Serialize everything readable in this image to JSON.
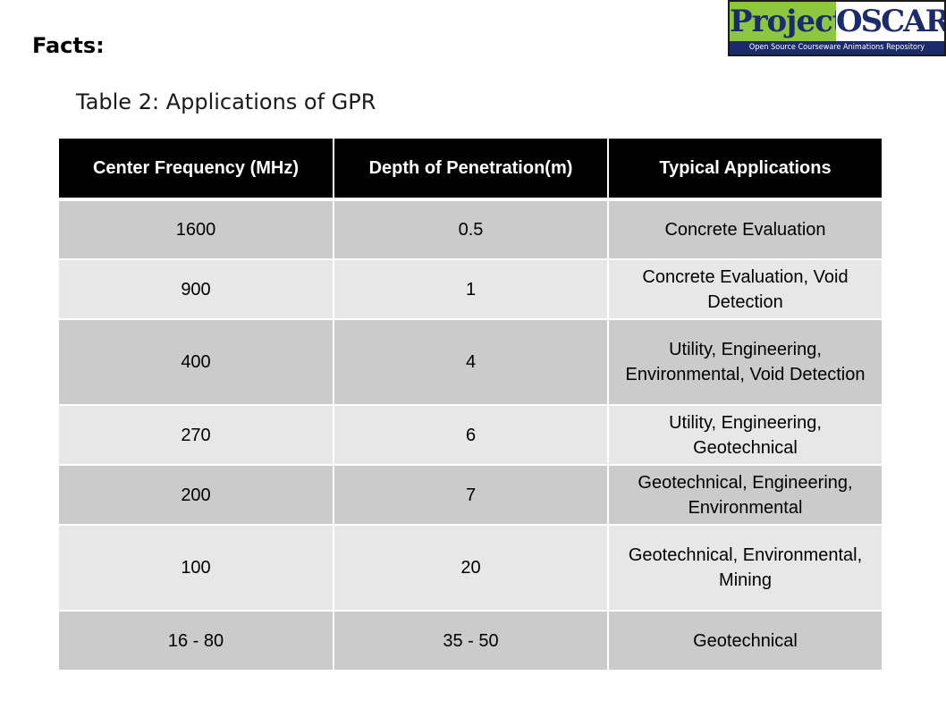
{
  "heading": "Facts:",
  "caption": "Table 2: Applications of GPR",
  "logo": {
    "word1": "Project",
    "word2": "OSCAR",
    "tagline": "Open Source Courseware Animations Repository",
    "colors": {
      "green": "#8dc63f",
      "navy": "#1b2b6b"
    }
  },
  "table": {
    "headers": [
      "Center Frequency (MHz)",
      "Depth of Penetration(m)",
      "Typical Applications"
    ],
    "rows": [
      {
        "freq": "1600",
        "depth": "0.5",
        "apps": "Concrete Evaluation"
      },
      {
        "freq": "900",
        "depth": "1",
        "apps": "Concrete Evaluation, Void Detection"
      },
      {
        "freq": "400",
        "depth": "4",
        "apps": "Utility, Engineering, Environmental, Void Detection"
      },
      {
        "freq": "270",
        "depth": "6",
        "apps": "Utility, Engineering, Geotechnical"
      },
      {
        "freq": "200",
        "depth": "7",
        "apps": "Geotechnical, Engineering, Environmental"
      },
      {
        "freq": "100",
        "depth": "20",
        "apps": "Geotechnical, Environmental, Mining"
      },
      {
        "freq": "16 - 80",
        "depth": "35 - 50",
        "apps": "Geotechnical"
      }
    ]
  }
}
